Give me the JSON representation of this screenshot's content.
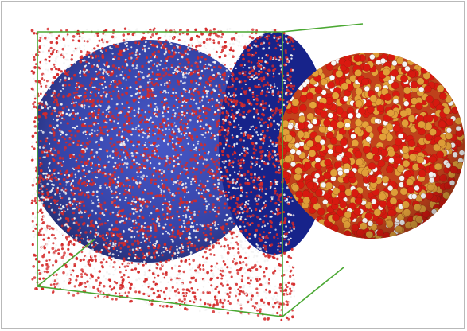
{
  "figure": {
    "colors": {
      "water_oxygen": "#d42a2a",
      "water_hydrogen": "#f2f2f2",
      "solvent_cavity": "#1e2e9a",
      "particle_oxygen": "#e01a10",
      "particle_silicon": "#e8a43a",
      "particle_hydrogen": "#ffffff",
      "box_edges": "#4aa832"
    }
  }
}
